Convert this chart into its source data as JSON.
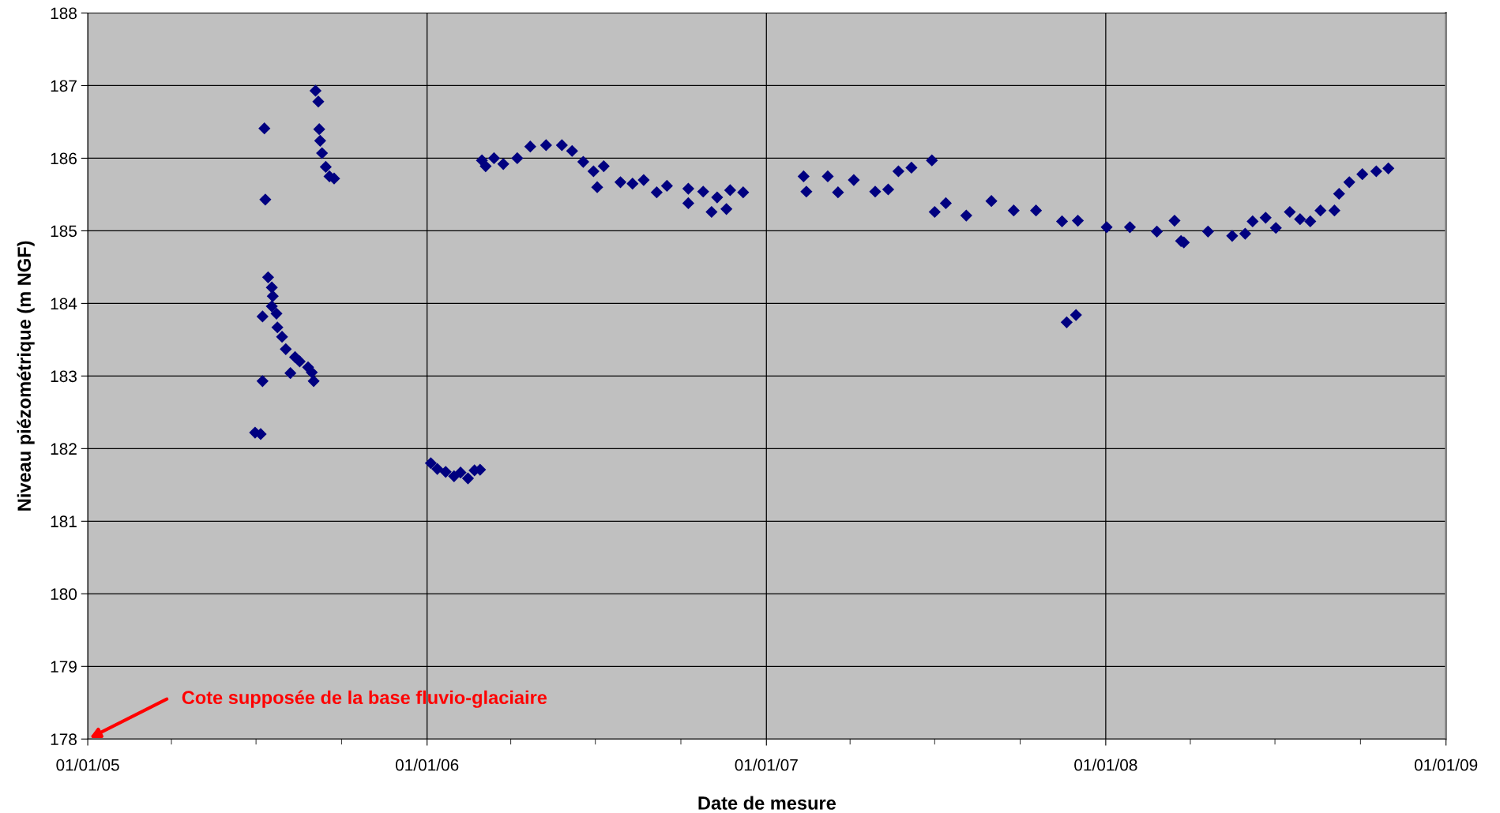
{
  "chart_data": {
    "type": "scatter",
    "xlabel": "Date de mesure",
    "ylabel": "Niveau piézométrique (m NGF)",
    "x": [
      "2005-06-30",
      "2005-07-06",
      "2005-07-08",
      "2005-07-08",
      "2005-07-10",
      "2005-07-11",
      "2005-07-14",
      "2005-07-18",
      "2005-07-19",
      "2005-07-18",
      "2005-07-23",
      "2005-07-24",
      "2005-07-29",
      "2005-08-02",
      "2005-08-07",
      "2005-08-12",
      "2005-08-17",
      "2005-08-26",
      "2005-08-30",
      "2005-09-01",
      "2005-09-03",
      "2005-09-06",
      "2005-09-07",
      "2005-09-08",
      "2005-09-10",
      "2005-09-14",
      "2005-09-18",
      "2005-09-23",
      "2006-01-05",
      "2006-01-12",
      "2006-01-21",
      "2006-01-30",
      "2006-02-06",
      "2006-02-14",
      "2006-02-21",
      "2006-02-27",
      "2006-03-01",
      "2006-03-05",
      "2006-03-14",
      "2006-03-24",
      "2006-04-08",
      "2006-04-22",
      "2006-05-09",
      "2006-05-26",
      "2006-06-06",
      "2006-06-18",
      "2006-06-29",
      "2006-07-03",
      "2006-07-10",
      "2006-07-28",
      "2006-08-10",
      "2006-08-22",
      "2006-09-05",
      "2006-09-16",
      "2006-10-09",
      "2006-10-09",
      "2006-10-25",
      "2006-11-03",
      "2006-11-09",
      "2006-11-19",
      "2006-11-23",
      "2006-12-07",
      "2007-02-10",
      "2007-02-13",
      "2007-03-08",
      "2007-03-19",
      "2007-04-05",
      "2007-04-28",
      "2007-05-12",
      "2007-05-23",
      "2007-06-06",
      "2007-06-28",
      "2007-07-01",
      "2007-07-13",
      "2007-08-04",
      "2007-08-31",
      "2007-09-24",
      "2007-10-18",
      "2007-11-15",
      "2007-11-20",
      "2007-11-30",
      "2007-12-02",
      "2008-01-02",
      "2008-01-27",
      "2008-02-25",
      "2008-03-15",
      "2008-03-22",
      "2008-03-25",
      "2008-04-20",
      "2008-05-16",
      "2008-05-30",
      "2008-06-07",
      "2008-06-21",
      "2008-07-02",
      "2008-07-17",
      "2008-07-28",
      "2008-08-08",
      "2008-08-19",
      "2008-09-03",
      "2008-09-08",
      "2008-09-19",
      "2008-10-03",
      "2008-10-18",
      "2008-10-31"
    ],
    "series": [
      {
        "color": "#000080",
        "values": [
          182.22,
          182.2,
          183.82,
          182.93,
          186.41,
          185.43,
          184.36,
          184.22,
          184.1,
          183.96,
          183.86,
          183.67,
          183.54,
          183.37,
          183.04,
          183.26,
          183.2,
          183.12,
          183.05,
          182.93,
          186.93,
          186.78,
          186.4,
          186.24,
          186.07,
          185.88,
          185.75,
          185.72,
          181.8,
          181.72,
          181.68,
          181.62,
          181.67,
          181.59,
          181.7,
          181.71,
          185.97,
          185.89,
          186.0,
          185.92,
          186.0,
          186.16,
          186.18,
          186.18,
          186.1,
          185.95,
          185.82,
          185.6,
          185.89,
          185.67,
          185.65,
          185.7,
          185.53,
          185.62,
          185.58,
          185.38,
          185.54,
          185.26,
          185.46,
          185.3,
          185.56,
          185.53,
          185.75,
          185.54,
          185.75,
          185.53,
          185.7,
          185.54,
          185.57,
          185.82,
          185.87,
          185.97,
          185.26,
          185.38,
          185.21,
          185.41,
          185.28,
          185.28,
          185.13,
          183.74,
          183.84,
          185.14,
          185.05,
          185.05,
          184.99,
          185.14,
          184.86,
          184.84,
          184.99,
          184.93,
          184.96,
          185.13,
          185.18,
          185.04,
          185.26,
          185.16,
          185.13,
          185.28,
          185.28,
          185.51,
          185.67,
          185.78,
          185.82,
          185.86
        ]
      }
    ],
    "marker": "diamond",
    "xlim": [
      "2005-01-01",
      "2009-01-01"
    ],
    "xticks": [
      {
        "value": "2005-01-01",
        "label": "01/01/05"
      },
      {
        "value": "2005-04-01",
        "label": null
      },
      {
        "value": "2005-07-01",
        "label": null
      },
      {
        "value": "2005-10-01",
        "label": null
      },
      {
        "value": "2006-01-01",
        "label": "01/01/06"
      },
      {
        "value": "2006-04-01",
        "label": null
      },
      {
        "value": "2006-07-01",
        "label": null
      },
      {
        "value": "2006-10-01",
        "label": null
      },
      {
        "value": "2007-01-01",
        "label": "01/01/07"
      },
      {
        "value": "2007-04-01",
        "label": null
      },
      {
        "value": "2007-07-01",
        "label": null
      },
      {
        "value": "2007-10-01",
        "label": null
      },
      {
        "value": "2008-01-01",
        "label": "01/01/08"
      },
      {
        "value": "2008-04-01",
        "label": null
      },
      {
        "value": "2008-07-01",
        "label": null
      },
      {
        "value": "2008-10-01",
        "label": null
      },
      {
        "value": "2009-01-01",
        "label": "01/01/09"
      }
    ],
    "ylim": [
      178,
      188
    ],
    "yticks": [
      178,
      179,
      180,
      181,
      182,
      183,
      184,
      185,
      186,
      187,
      188
    ],
    "grid": true,
    "annotations": [
      "Cote supposée de la base fluvio-glaciaire"
    ]
  }
}
